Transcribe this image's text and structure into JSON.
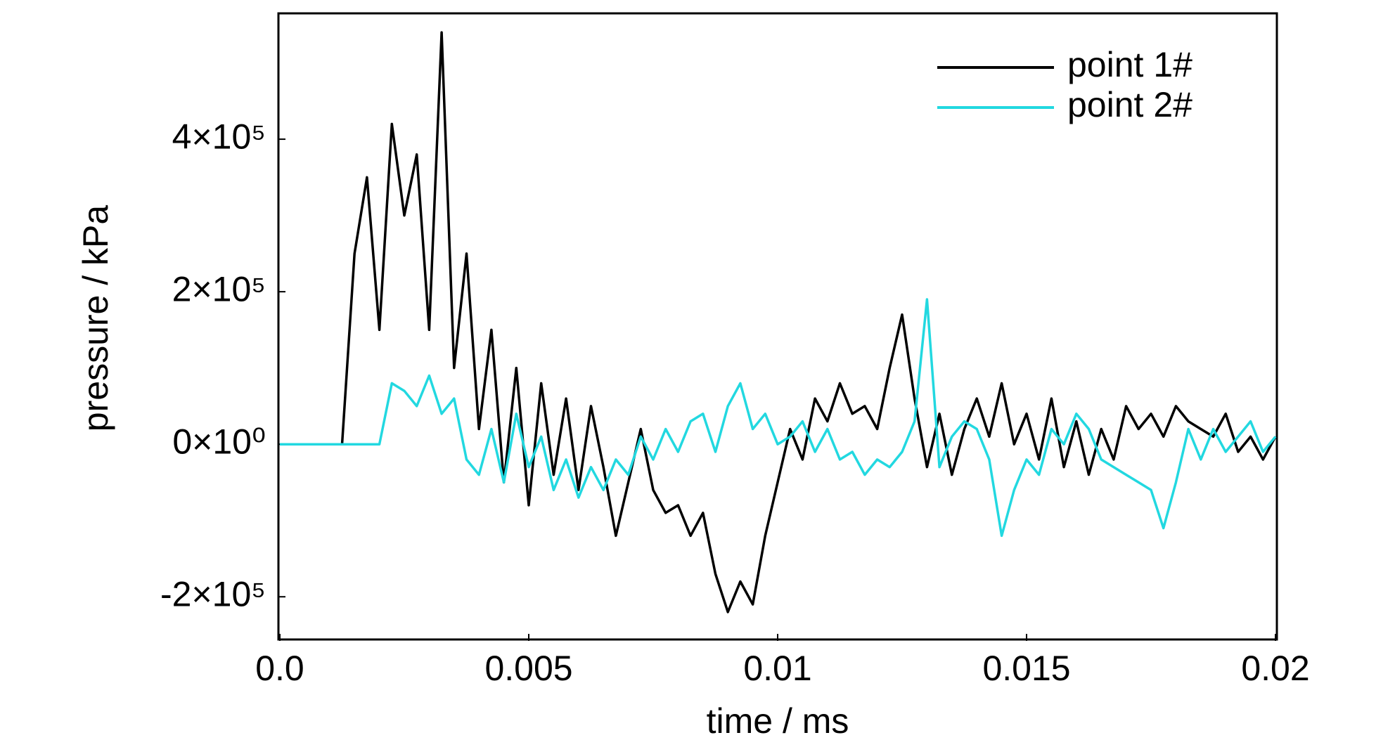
{
  "chart_data": {
    "type": "line",
    "xlabel": "time / ms",
    "ylabel": "pressure / kPa",
    "x": [
      0,
      0.00025,
      0.0005,
      0.00075,
      0.001,
      0.00125,
      0.0015,
      0.00175,
      0.002,
      0.00225,
      0.0025,
      0.00275,
      0.003,
      0.00325,
      0.0035,
      0.00375,
      0.004,
      0.00425,
      0.0045,
      0.00475,
      0.005,
      0.00525,
      0.0055,
      0.00575,
      0.006,
      0.00625,
      0.0065,
      0.00675,
      0.007,
      0.00725,
      0.0075,
      0.00775,
      0.008,
      0.00825,
      0.0085,
      0.00875,
      0.009,
      0.00925,
      0.0095,
      0.00975,
      0.01,
      0.01025,
      0.0105,
      0.01075,
      0.011,
      0.01125,
      0.0115,
      0.01175,
      0.012,
      0.01225,
      0.0125,
      0.01275,
      0.013,
      0.01325,
      0.0135,
      0.01375,
      0.014,
      0.01425,
      0.0145,
      0.01475,
      0.015,
      0.01525,
      0.0155,
      0.01575,
      0.016,
      0.01625,
      0.0165,
      0.01675,
      0.017,
      0.01725,
      0.0175,
      0.01775,
      0.018,
      0.01825,
      0.0185,
      0.01875,
      0.019,
      0.01925,
      0.0195,
      0.01975,
      0.02
    ],
    "series": [
      {
        "name": "point 1#",
        "color": "#000000",
        "values": [
          0,
          0,
          0,
          0,
          0,
          0,
          250000,
          350000,
          150000,
          420000,
          300000,
          380000,
          150000,
          540000,
          100000,
          250000,
          20000,
          150000,
          -50000,
          100000,
          -80000,
          80000,
          -40000,
          60000,
          -60000,
          50000,
          -30000,
          -120000,
          -50000,
          20000,
          -60000,
          -90000,
          -80000,
          -120000,
          -90000,
          -170000,
          -220000,
          -180000,
          -210000,
          -120000,
          -50000,
          20000,
          -20000,
          60000,
          30000,
          80000,
          40000,
          50000,
          20000,
          100000,
          170000,
          60000,
          -30000,
          40000,
          -40000,
          20000,
          60000,
          10000,
          80000,
          0,
          40000,
          -20000,
          60000,
          -30000,
          30000,
          -40000,
          20000,
          -20000,
          50000,
          20000,
          40000,
          10000,
          50000,
          30000,
          20000,
          10000,
          40000,
          -10000,
          10000,
          -20000,
          10000
        ]
      },
      {
        "name": "point 2#",
        "color": "#22d8e0",
        "values": [
          0,
          0,
          0,
          0,
          0,
          0,
          0,
          0,
          0,
          80000,
          70000,
          50000,
          90000,
          40000,
          60000,
          -20000,
          -40000,
          20000,
          -50000,
          40000,
          -30000,
          10000,
          -60000,
          -20000,
          -70000,
          -30000,
          -60000,
          -20000,
          -40000,
          10000,
          -20000,
          20000,
          -10000,
          30000,
          40000,
          -10000,
          50000,
          80000,
          20000,
          40000,
          0,
          10000,
          30000,
          -10000,
          20000,
          -20000,
          -10000,
          -40000,
          -20000,
          -30000,
          -10000,
          30000,
          190000,
          -30000,
          10000,
          30000,
          20000,
          -20000,
          -120000,
          -60000,
          -20000,
          -40000,
          20000,
          0,
          40000,
          20000,
          -20000,
          -30000,
          -40000,
          -50000,
          -60000,
          -110000,
          -50000,
          20000,
          -20000,
          20000,
          -10000,
          10000,
          30000,
          -10000,
          10000
        ]
      }
    ],
    "xlim": [
      0,
      0.02
    ],
    "xticks": [
      {
        "value": 0,
        "label": "0.0"
      },
      0.005,
      0.01,
      0.015,
      0.02
    ],
    "ylim": [
      -256000,
      565000
    ],
    "yticks": [
      {
        "value": -200000,
        "label": "-2×10⁵"
      },
      {
        "value": 0,
        "label": "0×10⁰"
      },
      {
        "value": 200000,
        "label": "2×10⁵"
      },
      {
        "value": 400000,
        "label": "4×10⁵"
      }
    ],
    "grid": false,
    "legend": "upper right"
  }
}
